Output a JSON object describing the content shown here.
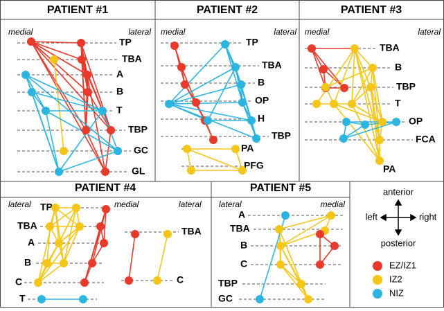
{
  "panels": [
    {
      "title": "PATIENT #1",
      "side_labels": [
        "medial",
        "lateral"
      ],
      "regions": [
        "TP",
        "TBA",
        "A",
        "B",
        "T",
        "TBP",
        "GC",
        "GL"
      ]
    },
    {
      "title": "PATIENT #2",
      "side_labels": [
        "medial",
        "lateral"
      ],
      "regions": [
        "TP",
        "TBA",
        "B",
        "OP",
        "H",
        "TBP",
        "PA",
        "PFG"
      ]
    },
    {
      "title": "PATIENT #3",
      "side_labels": [
        "medial",
        "lateral"
      ],
      "regions": [
        "TBA",
        "B",
        "TBP",
        "T",
        "OP",
        "FCA",
        "PA"
      ]
    },
    {
      "title": "PATIENT #4",
      "side_labels": [
        "lateral",
        "medial",
        "lateral"
      ],
      "regions": [
        "TP",
        "TBA",
        "A",
        "B",
        "C",
        "T",
        "TBA",
        "C"
      ]
    },
    {
      "title": "PATIENT #5",
      "side_labels": [
        "lateral",
        "medial"
      ],
      "regions": [
        "A",
        "TBA",
        "B",
        "C",
        "TBP",
        "GC"
      ]
    }
  ],
  "compass": {
    "up": "anterior",
    "down": "posterior",
    "left": "left",
    "right": "right"
  },
  "legend": [
    {
      "label": "EZ/IZ1",
      "color": "#e8392b"
    },
    {
      "label": "IZ2",
      "color": "#f5c518"
    },
    {
      "label": "NIZ",
      "color": "#2cb5e0"
    }
  ]
}
